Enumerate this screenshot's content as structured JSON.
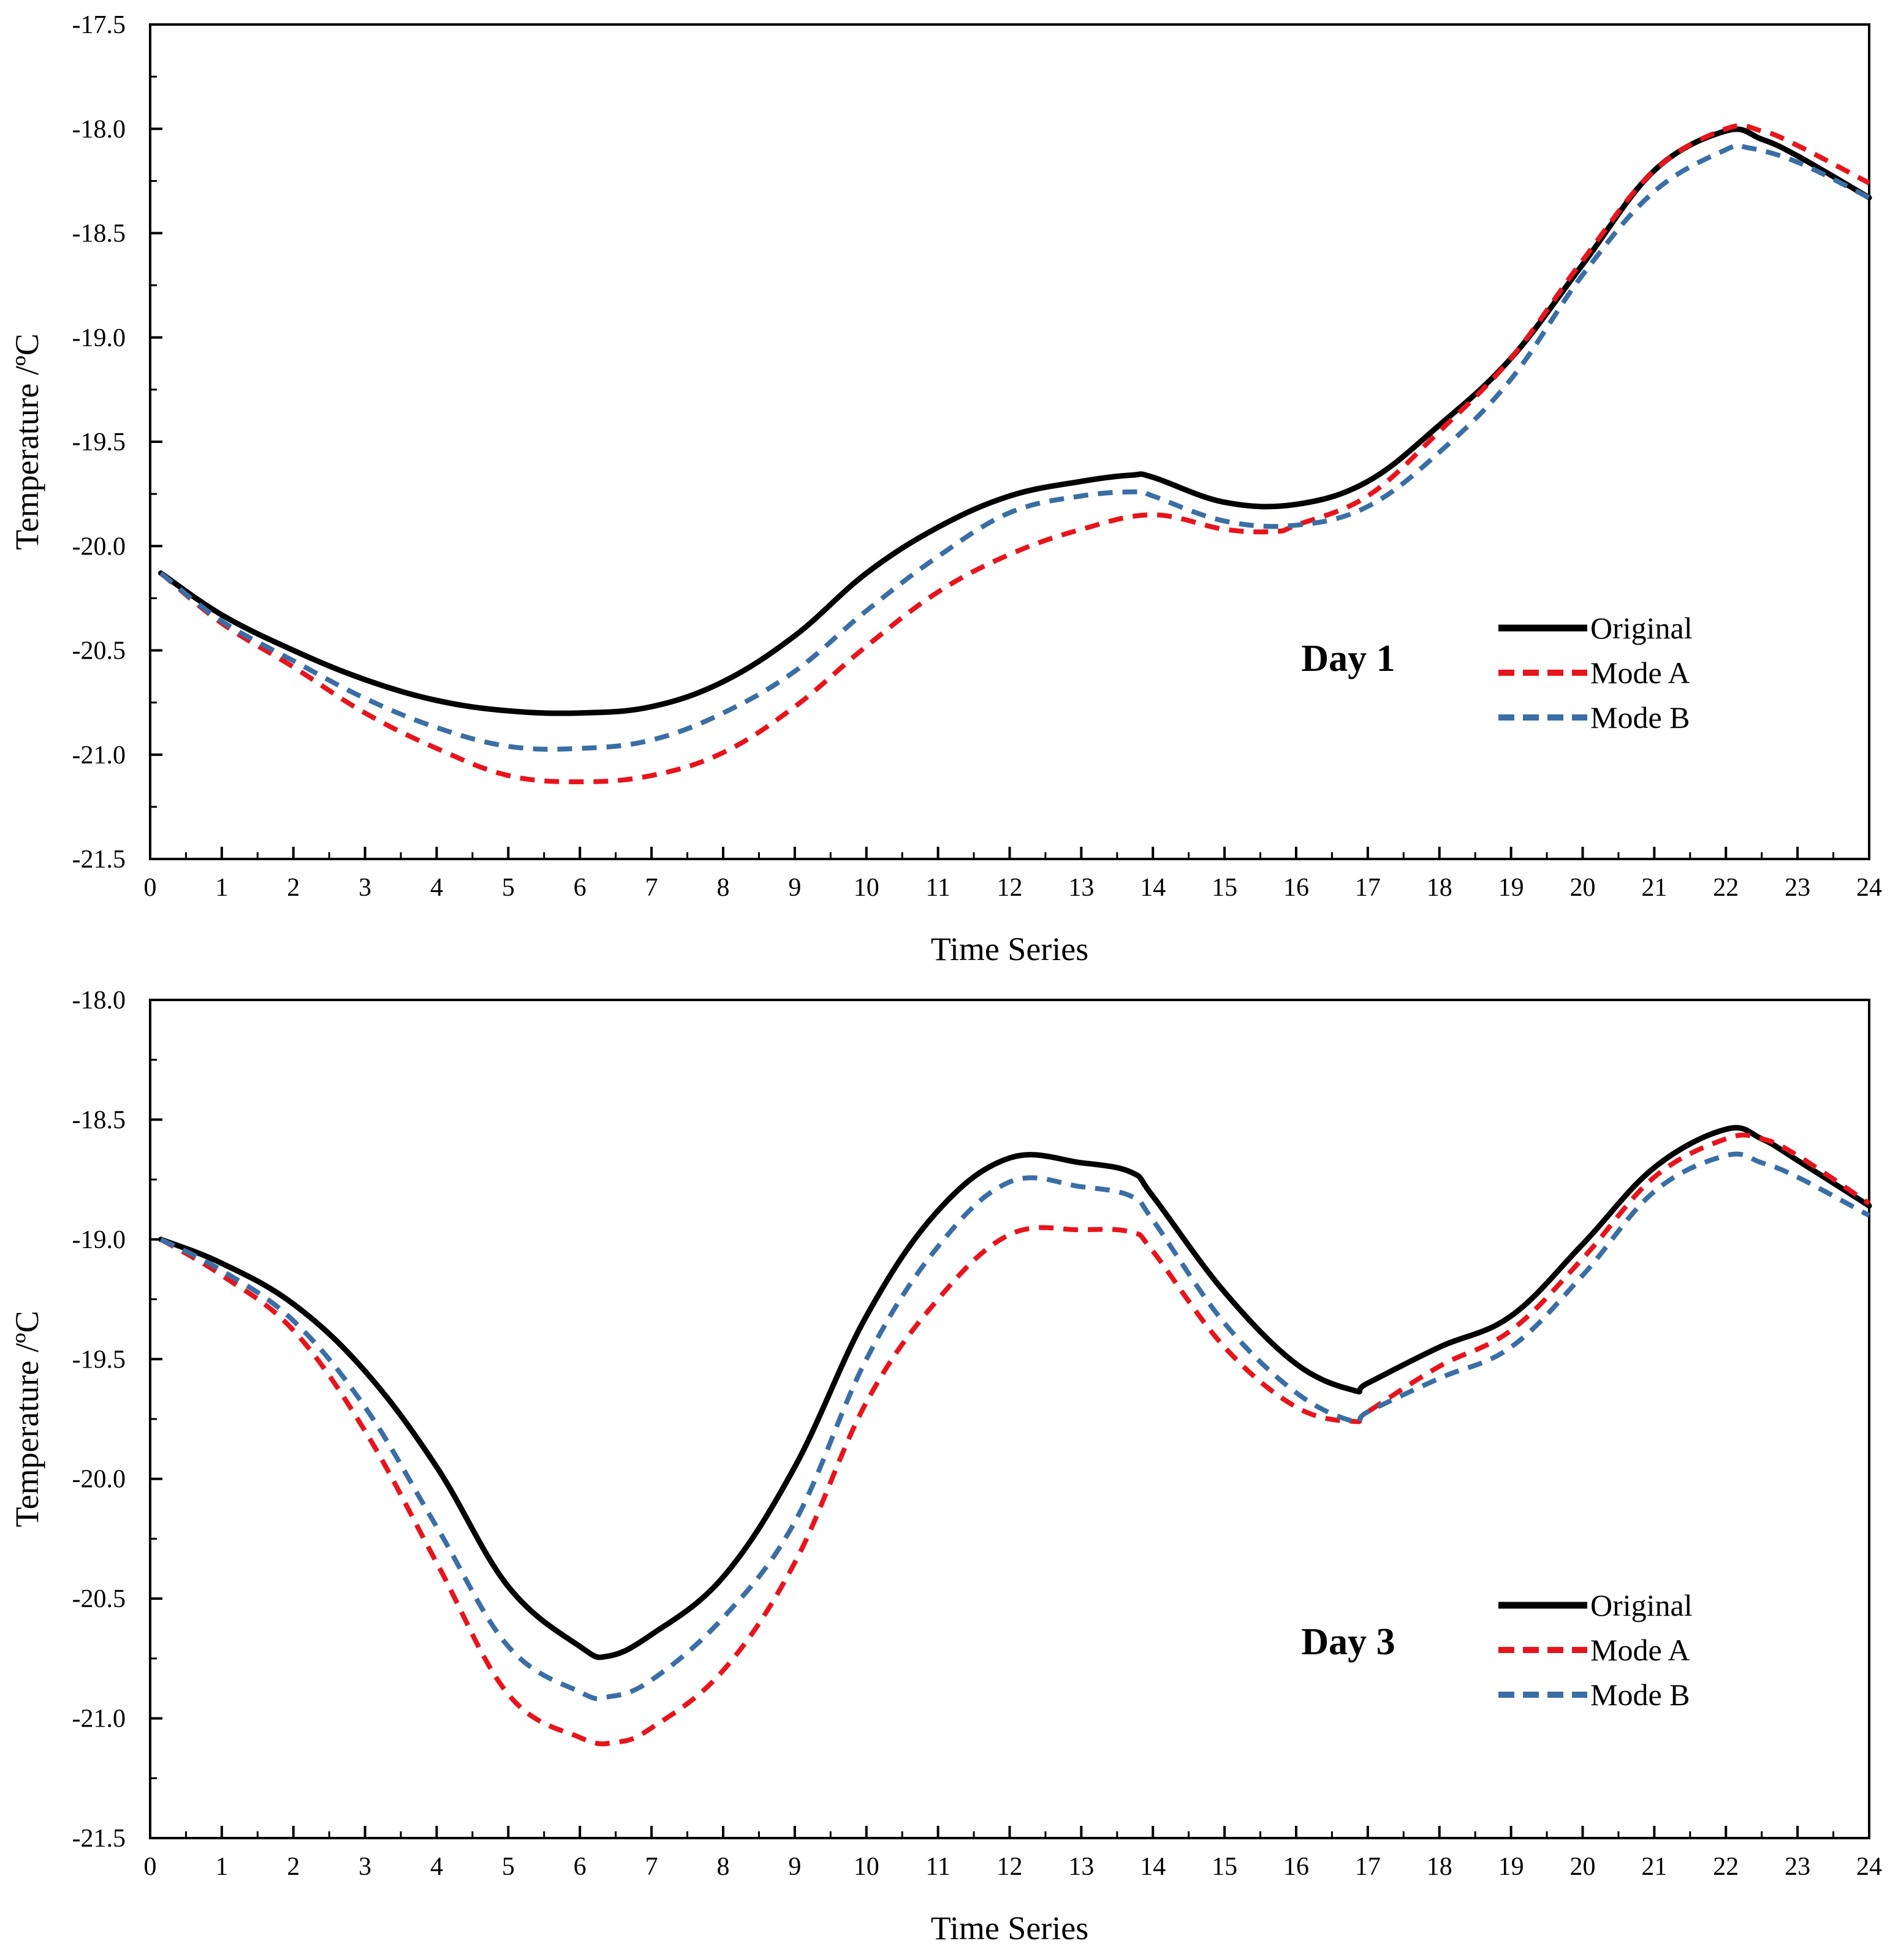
{
  "chart_data": [
    {
      "type": "line",
      "panel_label": "Day 1",
      "xlabel": "Time Series",
      "ylabel": "Temperature /ºC",
      "xlim": [
        0,
        24
      ],
      "ylim": [
        -21.5,
        -17.5
      ],
      "x_ticks": [
        "0",
        "1",
        "2",
        "3",
        "4",
        "5",
        "6",
        "7",
        "8",
        "9",
        "10",
        "11",
        "12",
        "13",
        "14",
        "15",
        "16",
        "17",
        "18",
        "19",
        "20",
        "21",
        "22",
        "23",
        "24"
      ],
      "y_ticks": [
        "-17.5",
        "-18.0",
        "-18.5",
        "-19.0",
        "-19.5",
        "-20.0",
        "-20.5",
        "-21.0",
        "-21.5"
      ],
      "legend_position": "right",
      "series": [
        {
          "name": "Original",
          "color": "#000000",
          "style": "solid",
          "x": [
            0.15,
            1,
            2,
            3,
            4,
            5,
            6,
            7,
            8,
            9,
            10,
            11,
            12,
            13,
            13.7,
            14,
            15,
            16,
            17,
            18,
            19,
            20,
            21,
            22,
            22.5,
            23,
            24
          ],
          "y": [
            -20.13,
            -20.33,
            -20.5,
            -20.64,
            -20.74,
            -20.79,
            -20.8,
            -20.77,
            -20.65,
            -20.43,
            -20.13,
            -19.91,
            -19.76,
            -19.69,
            -19.66,
            -19.67,
            -19.79,
            -19.8,
            -19.69,
            -19.42,
            -19.1,
            -18.65,
            -18.2,
            -18.01,
            -18.05,
            -18.13,
            -18.33
          ]
        },
        {
          "name": "Mode A",
          "color": "#e8141c",
          "style": "dashed",
          "x": [
            0.15,
            1,
            2,
            3,
            4,
            5,
            6,
            7,
            8,
            9,
            10,
            11,
            12,
            13,
            14,
            15,
            15.7,
            16,
            17,
            18,
            19,
            20,
            21,
            22,
            22.5,
            23,
            24
          ],
          "y": [
            -20.13,
            -20.37,
            -20.58,
            -20.8,
            -20.97,
            -21.1,
            -21.13,
            -21.1,
            -20.99,
            -20.77,
            -20.48,
            -20.22,
            -20.04,
            -19.92,
            -19.85,
            -19.92,
            -19.93,
            -19.9,
            -19.76,
            -19.45,
            -19.1,
            -18.63,
            -18.2,
            -18.0,
            -18.01,
            -18.08,
            -18.26
          ]
        },
        {
          "name": "Mode B",
          "color": "#3a6ea5",
          "style": "dashed",
          "x": [
            0.15,
            1,
            2,
            3,
            4,
            5,
            6,
            7,
            8,
            9,
            10,
            11,
            12,
            13,
            13.8,
            14,
            15,
            16,
            17,
            18,
            19,
            20,
            21,
            22,
            22.3,
            23,
            24
          ],
          "y": [
            -20.13,
            -20.36,
            -20.55,
            -20.73,
            -20.87,
            -20.96,
            -20.97,
            -20.93,
            -20.8,
            -20.6,
            -20.31,
            -20.05,
            -19.84,
            -19.76,
            -19.74,
            -19.76,
            -19.88,
            -19.9,
            -19.81,
            -19.55,
            -19.2,
            -18.7,
            -18.3,
            -18.1,
            -18.09,
            -18.16,
            -18.33
          ]
        }
      ]
    },
    {
      "type": "line",
      "panel_label": "Day 3",
      "xlabel": "Time Series",
      "ylabel": "Temperature /ºC",
      "xlim": [
        0,
        24
      ],
      "ylim": [
        -21.5,
        -18.0
      ],
      "x_ticks": [
        "0",
        "1",
        "2",
        "3",
        "4",
        "5",
        "6",
        "7",
        "8",
        "9",
        "10",
        "11",
        "12",
        "13",
        "14",
        "15",
        "16",
        "17",
        "18",
        "19",
        "20",
        "21",
        "22",
        "23",
        "24"
      ],
      "y_ticks": [
        "-18.0",
        "-18.5",
        "-19.0",
        "-19.5",
        "-20.0",
        "-20.5",
        "-21.0",
        "-21.5"
      ],
      "legend_position": "right",
      "series": [
        {
          "name": "Original",
          "color": "#000000",
          "style": "solid",
          "x": [
            0.15,
            1,
            2,
            3,
            4,
            5,
            6,
            6.4,
            7,
            8,
            9,
            10,
            11,
            12,
            13,
            13.7,
            14,
            15,
            16,
            16.8,
            17,
            18,
            19,
            20,
            21,
            22,
            22.5,
            23,
            24
          ],
          "y": [
            -19.0,
            -19.1,
            -19.27,
            -19.55,
            -19.95,
            -20.45,
            -20.7,
            -20.74,
            -20.65,
            -20.41,
            -19.95,
            -19.32,
            -18.88,
            -18.66,
            -18.68,
            -18.72,
            -18.82,
            -19.22,
            -19.52,
            -19.63,
            -19.6,
            -19.45,
            -19.32,
            -19.02,
            -18.7,
            -18.54,
            -18.58,
            -18.67,
            -18.86
          ]
        },
        {
          "name": "Mode A",
          "color": "#e8141c",
          "style": "dashed",
          "x": [
            0.15,
            1,
            2,
            3,
            4,
            5,
            6,
            6.5,
            7,
            8,
            9,
            10,
            11,
            12,
            13,
            13.7,
            14,
            15,
            16,
            16.8,
            17,
            18,
            19,
            20,
            21,
            22,
            22.5,
            23,
            24
          ],
          "y": [
            -19.0,
            -19.15,
            -19.38,
            -19.8,
            -20.35,
            -20.9,
            -21.08,
            -21.1,
            -21.04,
            -20.8,
            -20.35,
            -19.68,
            -19.25,
            -18.98,
            -18.96,
            -18.97,
            -19.05,
            -19.45,
            -19.7,
            -19.76,
            -19.72,
            -19.53,
            -19.38,
            -19.08,
            -18.74,
            -18.58,
            -18.58,
            -18.65,
            -18.85
          ]
        },
        {
          "name": "Mode B",
          "color": "#3a6ea5",
          "style": "dashed",
          "x": [
            0.15,
            1,
            2,
            3,
            4,
            5,
            6,
            6.4,
            7,
            8,
            9,
            10,
            11,
            12,
            13,
            13.7,
            14,
            15,
            16,
            16.8,
            17,
            18,
            19,
            20,
            21,
            22,
            22.5,
            23,
            24
          ],
          "y": [
            -19.0,
            -19.13,
            -19.34,
            -19.7,
            -20.2,
            -20.7,
            -20.89,
            -20.91,
            -20.84,
            -20.58,
            -20.18,
            -19.5,
            -19.03,
            -18.76,
            -18.78,
            -18.82,
            -18.92,
            -19.35,
            -19.64,
            -19.76,
            -19.72,
            -19.58,
            -19.45,
            -19.15,
            -18.8,
            -18.65,
            -18.68,
            -18.74,
            -18.9
          ]
        }
      ]
    }
  ]
}
